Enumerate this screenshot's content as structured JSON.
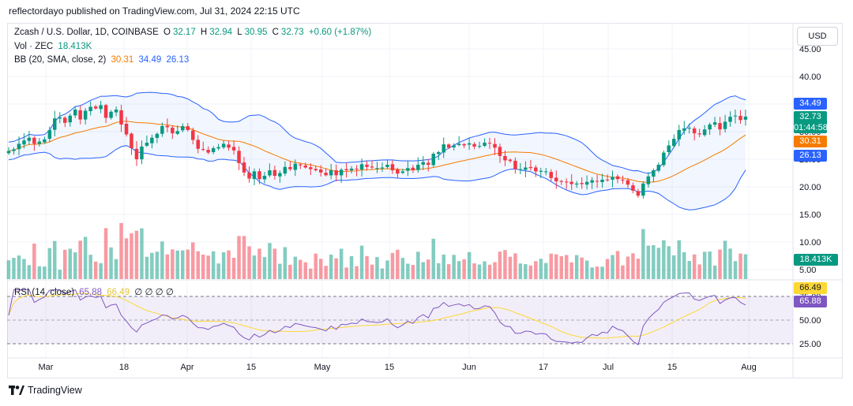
{
  "header": {
    "published": "reflectordayo published on TradingView.com, Jul 31, 2024 22:15 UTC"
  },
  "legend": {
    "symbol": "Zcash / U.S. Dollar, 1D, COINBASE",
    "o_label": "O",
    "o": "32.17",
    "h_label": "H",
    "h": "32.94",
    "l_label": "L",
    "l": "30.95",
    "c_label": "C",
    "c": "32.73",
    "change": "+0.60 (+1.87%)",
    "vol_label": "Vol · ZEC",
    "vol": "18.413K",
    "bb_label": "BB (20, SMA, close, 2)",
    "bb_mid": "30.31",
    "bb_up": "34.49",
    "bb_low": "26.13",
    "rsi_label": "RSI (14, close)",
    "rsi": "65.88",
    "rsi_ma": "66.49",
    "rsi_extra": "∅ ∅ ∅ ∅"
  },
  "currency_button": "USD",
  "price_axis": [
    "45.00",
    "40.00",
    "35.00",
    "30.00",
    "25.00",
    "20.00",
    "15.00",
    "10.00",
    "5.00"
  ],
  "rsi_axis": [
    "75.00",
    "50.00",
    "25.00"
  ],
  "time_axis": [
    "Mar",
    "18",
    "Apr",
    "15",
    "May",
    "15",
    "Jun",
    "17",
    "Jul",
    "15",
    "Aug"
  ],
  "tags": {
    "bb_up": "34.49",
    "price": "32.73",
    "countdown": "01:44:58",
    "bb_mid": "30.31",
    "bb_low": "26.13",
    "volume": "18.413K",
    "rsi_ma": "66.49",
    "rsi": "65.88"
  },
  "colors": {
    "up": "#089981",
    "down": "#f23645",
    "bb_basis": "#f57c00",
    "bb_bands": "#2962ff",
    "rsi": "#7e57c2",
    "rsi_ma": "#fdd835"
  },
  "footer": {
    "brand": "TradingView"
  },
  "chart_data": {
    "type": "candlestick",
    "price_range": [
      0,
      47
    ],
    "closes": [
      26.5,
      26.8,
      27.8,
      28.4,
      28.9,
      27.8,
      28.2,
      28.6,
      30.3,
      32.4,
      32.6,
      31.6,
      32.9,
      34.0,
      32.2,
      33.8,
      34.5,
      34.2,
      34.8,
      32.5,
      33.6,
      34.0,
      31.3,
      29.5,
      27.0,
      25.0,
      27.3,
      28.0,
      28.9,
      29.6,
      31.0,
      30.8,
      29.7,
      30.1,
      31.0,
      30.3,
      28.5,
      26.9,
      26.8,
      26.2,
      27.0,
      27.2,
      27.8,
      27.1,
      26.6,
      24.3,
      22.6,
      21.5,
      22.8,
      21.4,
      22.0,
      23.0,
      22.0,
      22.5,
      23.6,
      23.2,
      24.2,
      23.9,
      23.5,
      23.2,
      23.0,
      22.6,
      22.1,
      23.0,
      22.1,
      23.1,
      23.0,
      23.3,
      23.2,
      24.1,
      23.6,
      23.5,
      23.4,
      23.5,
      24.0,
      23.0,
      22.4,
      22.8,
      23.4,
      23.0,
      24.0,
      24.5,
      24.0,
      26.0,
      26.3,
      27.7,
      27.1,
      27.5,
      27.8,
      27.5,
      27.9,
      27.3,
      27.4,
      28.0,
      27.9,
      27.1,
      25.6,
      24.8,
      24.7,
      23.2,
      23.2,
      23.5,
      23.4,
      22.8,
      22.9,
      22.8,
      21.6,
      21.0,
      20.9,
      20.8,
      20.5,
      20.6,
      20.5,
      20.9,
      21.2,
      21.0,
      21.3,
      21.2,
      21.8,
      21.4,
      21.2,
      20.4,
      19.3,
      18.4,
      20.6,
      21.9,
      23.0,
      24.0,
      26.2,
      27.5,
      28.7,
      30.3,
      30.6,
      30.7,
      29.7,
      29.5,
      30.4,
      31.3,
      31.7,
      30.4,
      31.8,
      32.7,
      32.9,
      32.1,
      32.73
    ],
    "bb_upper_last": 34.49,
    "bb_basis_last": 30.31,
    "bb_lower_last": 26.13,
    "rsi_last": 65.88,
    "rsi_ma_last": 66.49,
    "volume_last": "18.413K"
  }
}
